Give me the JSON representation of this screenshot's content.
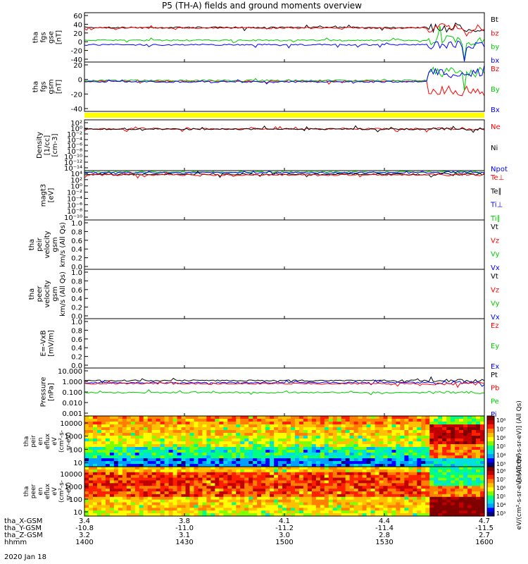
{
  "chart_data": {
    "type": "line",
    "title": "P5 (TH-A) fields and ground moments overview",
    "date": "2020 Jan 18",
    "panels": [
      {
        "id": "fgs_gse",
        "ylabel": [
          "tha",
          "fgs",
          "gse",
          "[nT]"
        ],
        "ylim": [
          -40,
          60
        ],
        "scale": "linear",
        "ticks": [
          "60",
          "40",
          "20",
          "0",
          "-20",
          "-40"
        ],
        "legend": [
          {
            "label": "Bt",
            "color": "#000000"
          },
          {
            "label": "bz",
            "color": "#ff0000"
          },
          {
            "label": "by",
            "color": "#00cc00"
          },
          {
            "label": "bx",
            "color": "#0000ff"
          }
        ],
        "series": [
          {
            "name": "Bt",
            "level": 30
          },
          {
            "name": "bz",
            "level": 29
          },
          {
            "name": "by",
            "level": 4
          },
          {
            "name": "bx",
            "level": -5
          }
        ]
      },
      {
        "id": "fgs_gsm",
        "ylabel": [
          "tha",
          "fgs",
          "gsm",
          "[nT]"
        ],
        "ylim": [
          -50,
          30
        ],
        "scale": "linear",
        "ticks": [
          "20",
          "0",
          "-20",
          "-40"
        ],
        "legend": [
          {
            "label": "Bz",
            "color": "#ff0000"
          },
          {
            "label": "By",
            "color": "#00cc00"
          },
          {
            "label": "Bx",
            "color": "#0000ff"
          }
        ],
        "series": [
          {
            "name": "Bz",
            "level": -1
          },
          {
            "name": "By",
            "level": 0
          },
          {
            "name": "Bx",
            "level": -2
          }
        ]
      },
      {
        "id": "density",
        "ylabel": [
          "Density",
          "[1/cc]",
          "[cm-3]"
        ],
        "ylim": [
          1e-14,
          100
        ],
        "scale": "log",
        "ticks": [
          "10²",
          "10⁰",
          "10⁻²",
          "10⁻⁴",
          "10⁻⁶",
          "10⁻⁸",
          "10⁻¹⁰",
          "10⁻¹²",
          "10⁻¹⁴"
        ],
        "legend": [
          {
            "label": "Ne",
            "color": "#ff0000"
          },
          {
            "label": "Ni",
            "color": "#000000"
          },
          {
            "label": "Npot",
            "color": "#0000ff"
          }
        ],
        "series": [
          {
            "name": "Ne",
            "level": 0.15
          },
          {
            "name": "Ni",
            "level": 0.12
          }
        ]
      },
      {
        "id": "temp",
        "ylabel": [
          "magt3",
          "[eV]"
        ],
        "ylim": [
          1e-10,
          10000
        ],
        "scale": "log",
        "ticks": [
          "10⁴",
          "10²",
          "10⁰",
          "10⁻²",
          "10⁻⁴",
          "10⁻⁶",
          "10⁻⁸",
          "10⁻¹⁰"
        ],
        "legend": [
          {
            "label": "Te⊥",
            "color": "#ff0000"
          },
          {
            "label": "Te∥",
            "color": "#000000"
          },
          {
            "label": "Ti⊥",
            "color": "#0000ff"
          },
          {
            "label": "Ti∥",
            "color": "#00cc00"
          }
        ],
        "series": [
          {
            "name": "Ti∥",
            "level": 4000
          },
          {
            "name": "Ti⊥",
            "level": 2500
          },
          {
            "name": "Te∥",
            "level": 900
          },
          {
            "name": "Te⊥",
            "level": 600
          }
        ]
      },
      {
        "id": "peir_vel",
        "ylabel": [
          "tha",
          "peir",
          "velocity",
          "gsm",
          "km/s (All Qs)"
        ],
        "ylim": [
          0,
          1
        ],
        "scale": "linear",
        "ticks": [
          "1.0",
          "0.8",
          "0.6",
          "0.4",
          "0.2",
          "0.0"
        ],
        "legend": [
          {
            "label": "Vt",
            "color": "#000000"
          },
          {
            "label": "Vz",
            "color": "#ff0000"
          },
          {
            "label": "Vy",
            "color": "#00cc00"
          },
          {
            "label": "Vx",
            "color": "#0000ff"
          }
        ],
        "series": []
      },
      {
        "id": "peer_vel",
        "ylabel": [
          "tha",
          "peer",
          "velocity",
          "gsm",
          "km/s (All Qs)"
        ],
        "ylim": [
          0,
          1
        ],
        "scale": "linear",
        "ticks": [
          "1.0",
          "0.8",
          "0.6",
          "0.4",
          "0.2",
          "0.0"
        ],
        "legend": [
          {
            "label": "Vt",
            "color": "#000000"
          },
          {
            "label": "Vz",
            "color": "#ff0000"
          },
          {
            "label": "Vy",
            "color": "#00cc00"
          },
          {
            "label": "Vx",
            "color": "#0000ff"
          }
        ],
        "series": []
      },
      {
        "id": "efield",
        "ylabel": [
          "E=-VxB",
          "[mV/m]"
        ],
        "ylim": [
          0,
          1
        ],
        "scale": "linear",
        "ticks": [
          "1.0",
          "0.8",
          "0.6",
          "0.4",
          "0.2",
          "0.0"
        ],
        "legend": [
          {
            "label": "Ez",
            "color": "#ff0000"
          },
          {
            "label": "Ey",
            "color": "#00cc00"
          },
          {
            "label": "Ex",
            "color": "#0000ff"
          }
        ],
        "series": []
      },
      {
        "id": "pressure",
        "ylabel": [
          "Pressure",
          "[nPa]"
        ],
        "ylim": [
          0.001,
          10
        ],
        "scale": "log",
        "ticks": [
          "10.000",
          "1.000",
          "0.100",
          "0.010",
          "0.001"
        ],
        "legend": [
          {
            "label": "Pt",
            "color": "#000000"
          },
          {
            "label": "Pb",
            "color": "#ff0000"
          },
          {
            "label": "Pe",
            "color": "#00cc00"
          },
          {
            "label": "Pi",
            "color": "#0000ff"
          }
        ],
        "series": [
          {
            "name": "Pt",
            "level": 0.9
          },
          {
            "name": "Pi",
            "level": 0.6
          },
          {
            "name": "Pb",
            "level": 0.5
          },
          {
            "name": "Pe",
            "level": 0.09
          }
        ]
      }
    ],
    "spectrograms": [
      {
        "id": "peir_en",
        "ylabel": [
          "tha",
          "peir",
          "en",
          "eflux",
          "eV",
          "(cm²-s-",
          "sr-eV)"
        ],
        "ylim": [
          10,
          20000
        ],
        "scale": "log",
        "ticks": [
          "10000",
          "1000",
          "100",
          "10"
        ],
        "colorbar_label": "[eV/(cm²-s-sr-eV)] (All Qs)",
        "colorbar_ticks": [
          "10⁸",
          "10⁷",
          "10⁶",
          "10⁵",
          "10⁴",
          "10³"
        ]
      },
      {
        "id": "peer_en",
        "ylabel": [
          "tha",
          "peer",
          "en",
          "eflux",
          "eV",
          "(cm²-s-",
          "sr-eV)"
        ],
        "ylim": [
          10,
          20000
        ],
        "scale": "log",
        "ticks": [
          "10000",
          "1000",
          "100",
          "10"
        ],
        "colorbar_label": "eV/(cm²-s-sr-eV) (All Qs)",
        "colorbar_ticks": [
          "10⁸",
          "10⁷",
          "10⁶",
          "10⁵",
          "10⁴",
          "10³"
        ]
      }
    ],
    "x_axis": {
      "row_labels": [
        "tha_X-GSM",
        "tha_Y-GSM",
        "tha_Z-GSM",
        "hhmm"
      ],
      "ticks": [
        {
          "values": [
            "3.4",
            "-10.8",
            "3.2",
            "1400"
          ]
        },
        {
          "values": [
            "3.8",
            "-11.0",
            "3.1",
            "1430"
          ]
        },
        {
          "values": [
            "4.1",
            "-11.2",
            "3.0",
            "1500"
          ]
        },
        {
          "values": [
            "4.4",
            "-11.4",
            "2.8",
            "1530"
          ]
        },
        {
          "values": [
            "4.7",
            "-11.5",
            "2.7",
            "1600"
          ]
        }
      ],
      "range_min": [
        1400,
        1600
      ]
    },
    "colors": {
      "bar": "#ffff00",
      "black": "#000000",
      "red": "#ff0000",
      "green": "#00cc00",
      "blue": "#0000ff"
    }
  }
}
